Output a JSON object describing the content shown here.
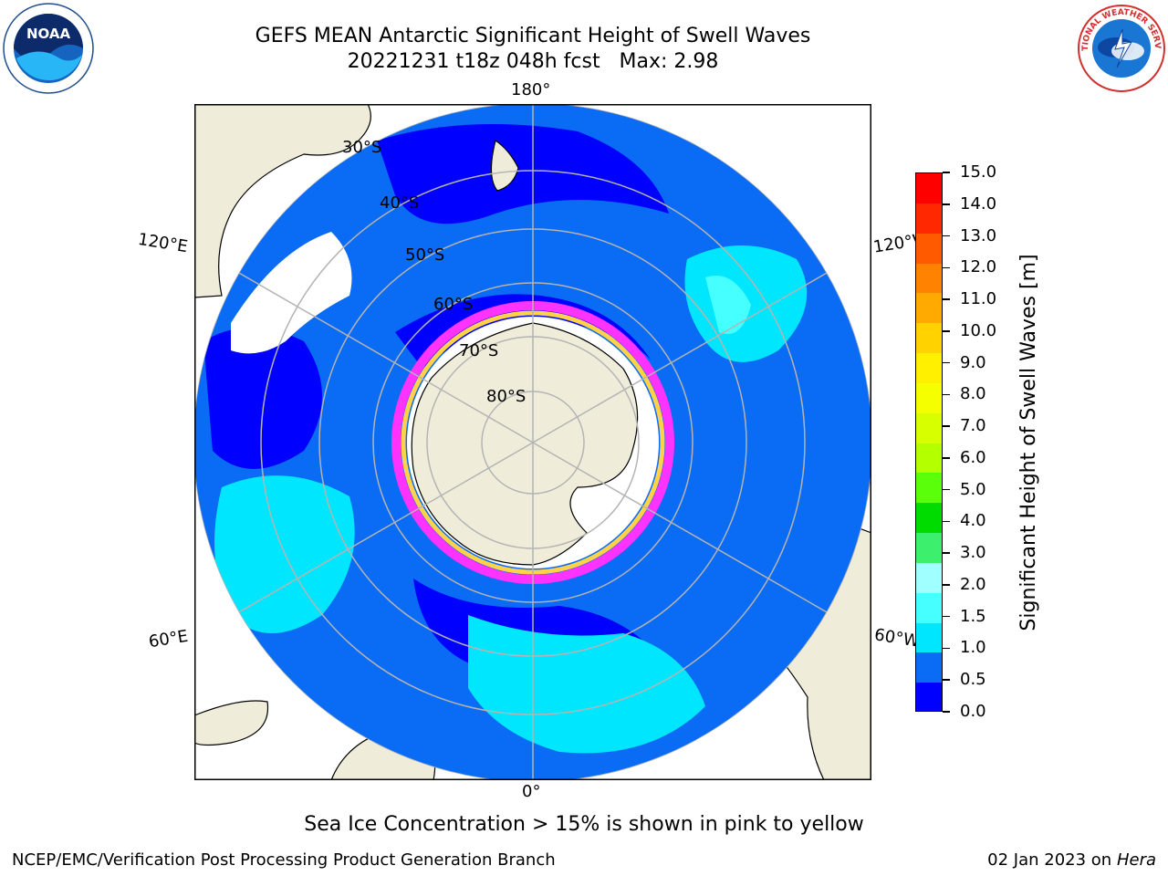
{
  "title": "GEFS MEAN Antarctic Significant Height of Swell Waves",
  "subtitle": "20221231 t18z 048h fcst   Max: 2.98",
  "map": {
    "longitude_labels": {
      "top": "180°",
      "bottom": "0°",
      "upper_left": "120°E",
      "upper_right": "120°W",
      "lower_left": "60°E",
      "lower_right": "60°W"
    },
    "latitude_labels": [
      "30°S",
      "40°S",
      "50°S",
      "60°S",
      "70°S",
      "80°S"
    ],
    "colors": {
      "land": "#efedd9",
      "ocean_low": "#0000ff",
      "ocean_mid": "#0a6bf4",
      "ocean_high": "#00e6ff",
      "sea_ice_edge": "#ff33ff",
      "sea_ice_inner": "#ffd24a",
      "grid": "#b4b4b4"
    }
  },
  "colorbar": {
    "title": "Significant Height of Swell Waves [m]",
    "labels": [
      "15.0",
      "14.0",
      "13.0",
      "12.0",
      "11.0",
      "10.0",
      "9.0",
      "8.0",
      "7.0",
      "6.0",
      "5.0",
      "4.0",
      "3.0",
      "2.0",
      "1.5",
      "1.0",
      "0.5",
      "0.0"
    ],
    "colors_top_to_bottom": [
      "#ff0000",
      "#ff2800",
      "#ff5a00",
      "#ff8200",
      "#ffaa00",
      "#ffd200",
      "#fff000",
      "#f5ff00",
      "#d7ff00",
      "#b4ff00",
      "#5aff0a",
      "#00dc00",
      "#3cf06e",
      "#a0ffff",
      "#46ffff",
      "#00e6ff",
      "#0a6bf4",
      "#0000ff"
    ]
  },
  "caption": "Sea Ice Concentration > 15% is shown in pink to yellow",
  "footer": {
    "left": "NCEP/EMC/Verification Post Processing Product Generation Branch",
    "right_date": "02 Jan 2023 on ",
    "right_machine": "Hera"
  },
  "logos": {
    "noaa": "NOAA",
    "nws_text": "NATIONAL WEATHER SERVICE"
  }
}
